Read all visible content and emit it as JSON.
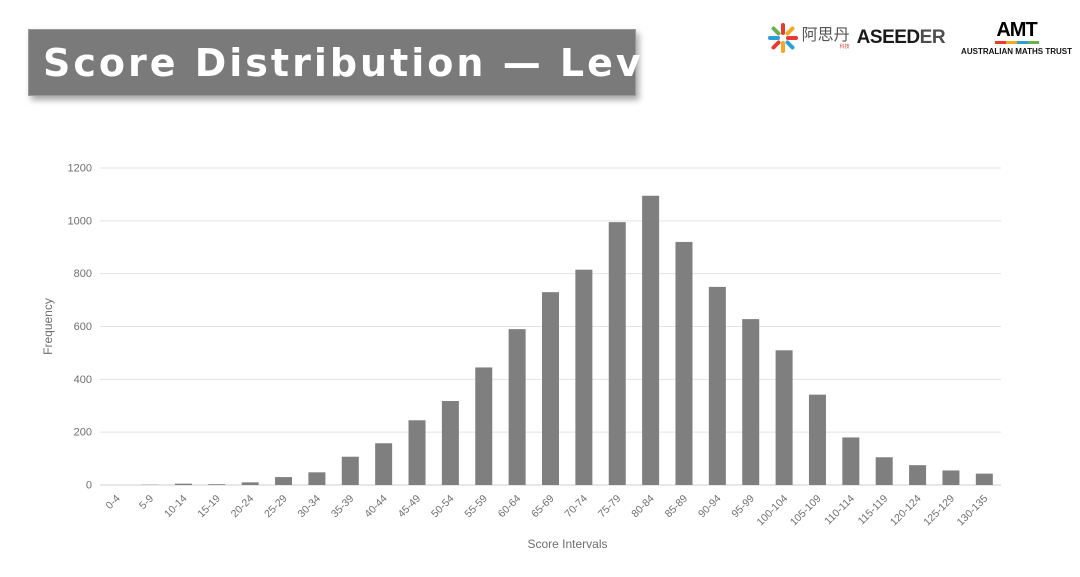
{
  "banner": {
    "title": "Score Distribution — Level C"
  },
  "logos": {
    "aseeder_chinese": "阿思丹",
    "aseeder_chinese_sub": "科技",
    "aseeder_text_a": "A",
    "aseeder_text_seed": "SEED",
    "aseeder_text_er": "ER",
    "amt_mark": "AMT",
    "amt_name": "AUSTRALIAN MATHS TRUST"
  },
  "colors": {
    "bar": "#7f7f7f",
    "grid": "#e3e3e3",
    "axis_text": "#6e6e6e",
    "banner": "#7a7a7a"
  },
  "chart_data": {
    "type": "bar",
    "title": "",
    "xlabel": "Score Intervals",
    "ylabel": "Frequency",
    "ylim": [
      0,
      1200
    ],
    "yticks": [
      0,
      200,
      400,
      600,
      800,
      1000,
      1200
    ],
    "grid": true,
    "categories": [
      "0-4",
      "5-9",
      "10-14",
      "15-19",
      "20-24",
      "25-29",
      "30-34",
      "35-39",
      "40-44",
      "45-49",
      "50-54",
      "55-59",
      "60-64",
      "65-69",
      "70-74",
      "75-79",
      "80-84",
      "85-89",
      "90-94",
      "95-99",
      "100-104",
      "105-109",
      "110-114",
      "115-119",
      "120-124",
      "125-129",
      "130-135"
    ],
    "values": [
      0,
      1,
      5,
      3,
      10,
      30,
      48,
      107,
      158,
      245,
      318,
      445,
      590,
      730,
      815,
      995,
      1095,
      920,
      750,
      628,
      510,
      342,
      180,
      105,
      75,
      55,
      43
    ]
  }
}
